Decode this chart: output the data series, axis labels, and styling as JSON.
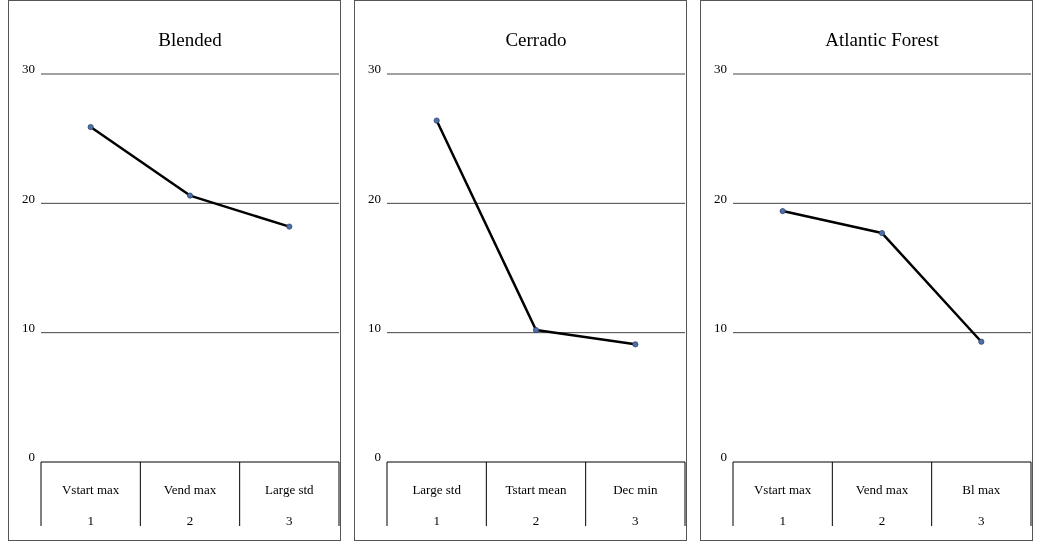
{
  "chart_data": [
    {
      "type": "line",
      "title": "Blended",
      "categories": [
        "Vstart max\n1",
        "Vend max\n2",
        "Large std\n3"
      ],
      "series": [
        {
          "color": "#000000",
          "values": [
            25.9,
            20.6,
            18.2
          ]
        }
      ],
      "ylim": [
        0,
        30
      ],
      "yticks": [
        0,
        10,
        20,
        30
      ],
      "grid": "y",
      "marker": "circle",
      "line_style": "solid"
    },
    {
      "type": "line",
      "title": "Cerrado",
      "categories": [
        "Large std\n1",
        "Tstart mean\n2",
        "Dec min\n3"
      ],
      "series": [
        {
          "color": "#000000",
          "values": [
            26.4,
            10.2,
            9.1
          ]
        }
      ],
      "ylim": [
        0,
        30
      ],
      "yticks": [
        0,
        10,
        20,
        30
      ],
      "grid": "y",
      "marker": "circle",
      "line_style": "solid"
    },
    {
      "type": "line",
      "title": "Atlantic Forest",
      "categories": [
        "Vstart max\n1",
        "Vend max\n2",
        "Bl max\n3"
      ],
      "series": [
        {
          "color": "#000000",
          "values": [
            19.4,
            17.7,
            9.3
          ]
        }
      ],
      "ylim": [
        0,
        30
      ],
      "yticks": [
        0,
        10,
        20,
        30
      ],
      "grid": "y",
      "marker": "circle",
      "line_style": "solid"
    }
  ]
}
